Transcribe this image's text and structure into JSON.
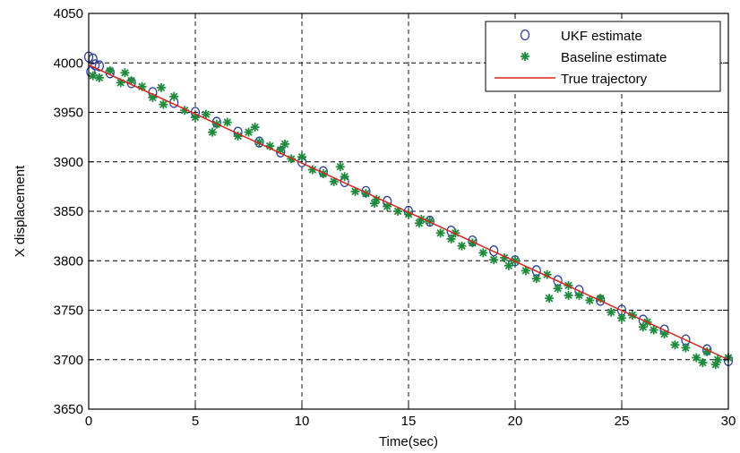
{
  "chart_data": {
    "type": "scatter",
    "title": "",
    "xlabel": "Time(sec)",
    "ylabel": "X displacement",
    "xlim": [
      0,
      30
    ],
    "ylim": [
      3650,
      4050
    ],
    "xticks": [
      0,
      5,
      10,
      15,
      20,
      25,
      30
    ],
    "yticks": [
      3650,
      3700,
      3750,
      3800,
      3850,
      3900,
      3950,
      4000,
      4050
    ],
    "grid": true,
    "legend_position": "top-right",
    "series": [
      {
        "name": "UKF estimate",
        "kind": "marker-circle",
        "color": "#2b3f9e",
        "x": [
          0,
          0.1,
          0.2,
          0.3,
          0.5,
          1,
          2,
          3,
          4,
          5,
          6,
          7,
          8,
          9,
          10,
          11,
          12,
          13,
          14,
          15,
          16,
          17,
          18,
          19,
          20,
          21,
          22,
          23,
          24,
          25,
          26,
          27,
          28,
          29,
          30
        ],
        "y": [
          4006,
          3991,
          4004,
          3998,
          3997,
          3990,
          3980,
          3970,
          3960,
          3950,
          3940,
          3930,
          3920,
          3910,
          3900,
          3890,
          3880,
          3870,
          3860,
          3850,
          3840,
          3830,
          3820,
          3810,
          3800,
          3790,
          3780,
          3770,
          3760,
          3750,
          3740,
          3730,
          3720,
          3710,
          3699
        ]
      },
      {
        "name": "Baseline estimate",
        "kind": "marker-star",
        "color": "#1e8a3c",
        "x": [
          0.2,
          0.5,
          1,
          1.5,
          2,
          2.5,
          3,
          3.5,
          4,
          4.5,
          5,
          5.5,
          6,
          6.5,
          7,
          7.5,
          8,
          8.5,
          9,
          9.5,
          10,
          10.5,
          11,
          11.5,
          12,
          12.5,
          13,
          13.5,
          14,
          14.5,
          15,
          15.5,
          16,
          16.5,
          17,
          17.5,
          18,
          18.5,
          19,
          19.5,
          20,
          20.5,
          21,
          21.5,
          22,
          22.5,
          23,
          23.5,
          24,
          24.5,
          25,
          25.5,
          26,
          26.5,
          27,
          27.5,
          28,
          28.5,
          29,
          29.5,
          30,
          5.8,
          7.8,
          13.4,
          21.6,
          22.5,
          28.8,
          3.4,
          11.8,
          17.2,
          19.7,
          26.2,
          29.4,
          1.7,
          9.2,
          15.6
        ],
        "y": [
          3987,
          3985,
          3992,
          3980,
          3982,
          3976,
          3965,
          3958,
          3966,
          3952,
          3945,
          3948,
          3938,
          3940,
          3926,
          3930,
          3920,
          3916,
          3912,
          3903,
          3905,
          3892,
          3888,
          3880,
          3885,
          3870,
          3868,
          3862,
          3855,
          3850,
          3847,
          3838,
          3840,
          3828,
          3822,
          3815,
          3818,
          3808,
          3801,
          3803,
          3800,
          3790,
          3782,
          3786,
          3772,
          3775,
          3765,
          3760,
          3762,
          3748,
          3742,
          3745,
          3733,
          3730,
          3726,
          3715,
          3712,
          3702,
          3708,
          3700,
          3702,
          3930,
          3935,
          3858,
          3762,
          3765,
          3697,
          3975,
          3895,
          3828,
          3795,
          3738,
          3695,
          3990,
          3918,
          3842
        ]
      },
      {
        "name": "True trajectory",
        "kind": "line",
        "color": "#d9261c",
        "x": [
          0,
          30
        ],
        "y": [
          3998,
          3700
        ]
      }
    ]
  }
}
